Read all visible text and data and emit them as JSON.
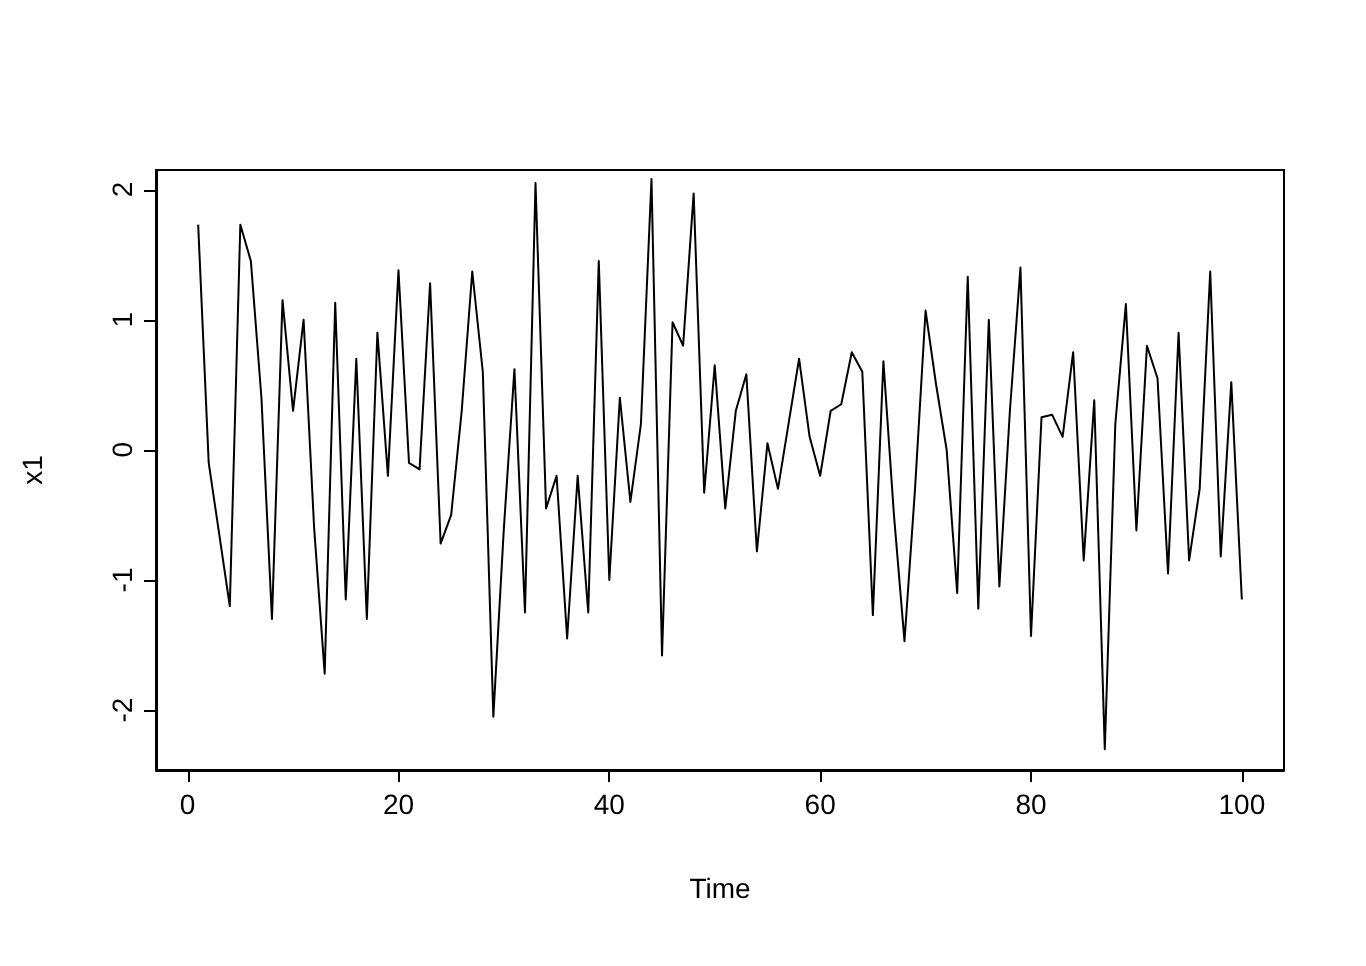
{
  "chart_data": {
    "type": "line",
    "xlabel": "Time",
    "ylabel": "x1",
    "x": [
      1,
      2,
      3,
      4,
      5,
      6,
      7,
      8,
      9,
      10,
      11,
      12,
      13,
      14,
      15,
      16,
      17,
      18,
      19,
      20,
      21,
      22,
      23,
      24,
      25,
      26,
      27,
      28,
      29,
      30,
      31,
      32,
      33,
      34,
      35,
      36,
      37,
      38,
      39,
      40,
      41,
      42,
      43,
      44,
      45,
      46,
      47,
      48,
      49,
      50,
      51,
      52,
      53,
      54,
      55,
      56,
      57,
      58,
      59,
      60,
      61,
      62,
      63,
      64,
      65,
      66,
      67,
      68,
      69,
      70,
      71,
      72,
      73,
      74,
      75,
      76,
      77,
      78,
      79,
      80,
      81,
      82,
      83,
      84,
      85,
      86,
      87,
      88,
      89,
      90,
      91,
      92,
      93,
      94,
      95,
      96,
      97,
      98,
      99,
      100
    ],
    "series": [
      {
        "color": "#000000",
        "values": [
          1.73,
          -0.1,
          -0.65,
          -1.2,
          1.73,
          1.45,
          0.4,
          -1.3,
          1.15,
          0.3,
          1.0,
          -0.6,
          -1.72,
          1.13,
          -1.15,
          0.7,
          -1.3,
          0.9,
          -0.2,
          1.38,
          -0.1,
          -0.15,
          1.28,
          -0.72,
          -0.5,
          0.3,
          1.37,
          0.6,
          -2.05,
          -0.6,
          0.62,
          -1.25,
          2.05,
          -0.45,
          -0.2,
          -1.45,
          -0.2,
          -1.25,
          1.45,
          -1.0,
          0.4,
          -0.4,
          0.2,
          2.08,
          -1.58,
          0.98,
          0.8,
          1.97,
          -0.33,
          0.65,
          -0.45,
          0.3,
          0.58,
          -0.78,
          0.05,
          -0.3,
          0.2,
          0.7,
          0.1,
          -0.2,
          0.3,
          0.35,
          0.75,
          0.6,
          -1.27,
          0.68,
          -0.5,
          -1.47,
          -0.3,
          1.07,
          0.5,
          0.0,
          -1.1,
          1.33,
          -1.22,
          1.0,
          -1.05,
          0.3,
          1.4,
          -1.43,
          0.25,
          0.27,
          0.1,
          0.75,
          -0.85,
          0.38,
          -2.3,
          0.2,
          1.12,
          -0.62,
          0.8,
          0.55,
          -0.95,
          0.9,
          -0.85,
          -0.3,
          1.37,
          -0.82,
          0.52,
          -1.15
        ]
      }
    ],
    "xlim": [
      -3,
      104
    ],
    "xticks": [
      0,
      20,
      40,
      60,
      80,
      100
    ],
    "ylim": [
      -2.46,
      2.15
    ],
    "yticks": [
      -2,
      -1,
      0,
      1,
      2
    ],
    "grid": false,
    "marker": "none",
    "line_style": "solid"
  }
}
